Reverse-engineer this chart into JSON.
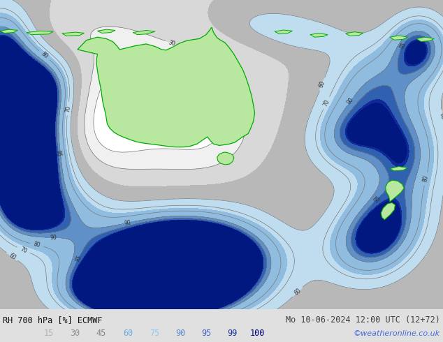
{
  "title_left": "RH 700 hPa [%] ECMWF",
  "title_right": "Mo 10-06-2024 12:00 UTC (12+72)",
  "credit": "©weatheronline.co.uk",
  "legend_values": [
    "15",
    "30",
    "45",
    "60",
    "75",
    "90",
    "95",
    "99",
    "100"
  ],
  "legend_label_colors": [
    "#b0b0b0",
    "#909090",
    "#808080",
    "#6aacdc",
    "#87ceeb",
    "#5a8cd0",
    "#4060c8",
    "#1030a0",
    "#000080"
  ],
  "bottom_bg": "#e0e0e0",
  "fig_width": 6.34,
  "fig_height": 4.9,
  "dpi": 100,
  "map_colors": [
    "#ffffff",
    "#e8e8e8",
    "#d0d0d0",
    "#b8b8b8",
    "#c8e0f0",
    "#a0c8e8",
    "#78acd8",
    "#5080c0",
    "#2850a8",
    "#102090"
  ],
  "boundaries": [
    0,
    15,
    30,
    45,
    60,
    75,
    90,
    95,
    99,
    100,
    110
  ]
}
